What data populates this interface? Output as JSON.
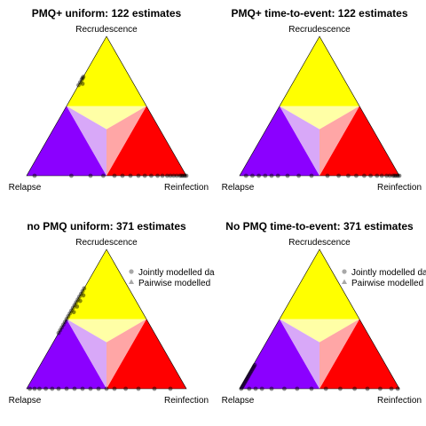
{
  "colors": {
    "recrudescence": "#ffff00",
    "relapse": "#8b00ff",
    "reinfection": "#ff0000",
    "centre_recrudescence": "#ffffa6",
    "centre_relapse": "#d8a8f8",
    "centre_reinfection": "#ffa6a6",
    "points": "#000000"
  },
  "vertex_labels": {
    "top": "Recrudescence",
    "left": "Relapse",
    "right": "Reinfection"
  },
  "legend": {
    "jointly": "Jointly modelled da",
    "pairwise": "Pairwise modelled"
  },
  "chart_data": [
    {
      "type": "scatter",
      "title": "PMQ+ uniform: 122 estimates",
      "coordinates": "ternary (relapse, recrudescence, reinfection)",
      "points": [
        {
          "relapse": 0.35,
          "recrudescence": 0.65,
          "reinfection": 0.0
        },
        {
          "relapse": 0.33,
          "recrudescence": 0.67,
          "reinfection": 0.0
        },
        {
          "relapse": 0.31,
          "recrudescence": 0.69,
          "reinfection": 0.0
        },
        {
          "relapse": 0.3,
          "recrudescence": 0.7,
          "reinfection": 0.0
        },
        {
          "relapse": 0.32,
          "recrudescence": 0.66,
          "reinfection": 0.02
        },
        {
          "relapse": 0.29,
          "recrudescence": 0.71,
          "reinfection": 0.0
        },
        {
          "relapse": 0.95,
          "recrudescence": 0.0,
          "reinfection": 0.05
        },
        {
          "relapse": 0.72,
          "recrudescence": 0.0,
          "reinfection": 0.28
        },
        {
          "relapse": 0.6,
          "recrudescence": 0.0,
          "reinfection": 0.4
        },
        {
          "relapse": 0.52,
          "recrudescence": 0.0,
          "reinfection": 0.48
        },
        {
          "relapse": 0.45,
          "recrudescence": 0.0,
          "reinfection": 0.55
        },
        {
          "relapse": 0.4,
          "recrudescence": 0.0,
          "reinfection": 0.6
        },
        {
          "relapse": 0.35,
          "recrudescence": 0.0,
          "reinfection": 0.65
        },
        {
          "relapse": 0.3,
          "recrudescence": 0.0,
          "reinfection": 0.7
        },
        {
          "relapse": 0.26,
          "recrudescence": 0.0,
          "reinfection": 0.74
        },
        {
          "relapse": 0.22,
          "recrudescence": 0.0,
          "reinfection": 0.78
        },
        {
          "relapse": 0.18,
          "recrudescence": 0.0,
          "reinfection": 0.82
        },
        {
          "relapse": 0.15,
          "recrudescence": 0.0,
          "reinfection": 0.85
        },
        {
          "relapse": 0.12,
          "recrudescence": 0.0,
          "reinfection": 0.88
        },
        {
          "relapse": 0.1,
          "recrudescence": 0.0,
          "reinfection": 0.9
        },
        {
          "relapse": 0.08,
          "recrudescence": 0.0,
          "reinfection": 0.92
        },
        {
          "relapse": 0.06,
          "recrudescence": 0.0,
          "reinfection": 0.94
        },
        {
          "relapse": 0.04,
          "recrudescence": 0.0,
          "reinfection": 0.96
        },
        {
          "relapse": 0.03,
          "recrudescence": 0.0,
          "reinfection": 0.97
        },
        {
          "relapse": 0.02,
          "recrudescence": 0.0,
          "reinfection": 0.98
        },
        {
          "relapse": 0.01,
          "recrudescence": 0.0,
          "reinfection": 0.99
        },
        {
          "relapse": 0.0,
          "recrudescence": 0.0,
          "reinfection": 1.0
        }
      ],
      "legend": false
    },
    {
      "type": "scatter",
      "title": "PMQ+ time-to-event: 122 estimates",
      "coordinates": "ternary (relapse, recrudescence, reinfection)",
      "points": [
        {
          "relapse": 0.96,
          "recrudescence": 0.0,
          "reinfection": 0.04
        },
        {
          "relapse": 0.92,
          "recrudescence": 0.0,
          "reinfection": 0.08
        },
        {
          "relapse": 0.88,
          "recrudescence": 0.0,
          "reinfection": 0.12
        },
        {
          "relapse": 0.84,
          "recrudescence": 0.0,
          "reinfection": 0.16
        },
        {
          "relapse": 0.8,
          "recrudescence": 0.0,
          "reinfection": 0.2
        },
        {
          "relapse": 0.76,
          "recrudescence": 0.0,
          "reinfection": 0.24
        },
        {
          "relapse": 0.7,
          "recrudescence": 0.0,
          "reinfection": 0.3
        },
        {
          "relapse": 0.63,
          "recrudescence": 0.0,
          "reinfection": 0.37
        },
        {
          "relapse": 0.55,
          "recrudescence": 0.0,
          "reinfection": 0.45
        },
        {
          "relapse": 0.45,
          "recrudescence": 0.0,
          "reinfection": 0.55
        },
        {
          "relapse": 0.38,
          "recrudescence": 0.0,
          "reinfection": 0.62
        },
        {
          "relapse": 0.32,
          "recrudescence": 0.0,
          "reinfection": 0.68
        },
        {
          "relapse": 0.27,
          "recrudescence": 0.0,
          "reinfection": 0.73
        },
        {
          "relapse": 0.22,
          "recrudescence": 0.0,
          "reinfection": 0.78
        },
        {
          "relapse": 0.18,
          "recrudescence": 0.0,
          "reinfection": 0.82
        },
        {
          "relapse": 0.14,
          "recrudescence": 0.0,
          "reinfection": 0.86
        },
        {
          "relapse": 0.11,
          "recrudescence": 0.0,
          "reinfection": 0.89
        },
        {
          "relapse": 0.08,
          "recrudescence": 0.0,
          "reinfection": 0.92
        },
        {
          "relapse": 0.06,
          "recrudescence": 0.0,
          "reinfection": 0.94
        },
        {
          "relapse": 0.04,
          "recrudescence": 0.0,
          "reinfection": 0.96
        },
        {
          "relapse": 0.03,
          "recrudescence": 0.0,
          "reinfection": 0.97
        },
        {
          "relapse": 0.02,
          "recrudescence": 0.0,
          "reinfection": 0.98
        },
        {
          "relapse": 0.01,
          "recrudescence": 0.0,
          "reinfection": 0.99
        },
        {
          "relapse": 0.0,
          "recrudescence": 0.0,
          "reinfection": 1.0
        }
      ],
      "legend": false
    },
    {
      "type": "scatter",
      "title": "no PMQ uniform: 371 estimates",
      "coordinates": "ternary (relapse, recrudescence, reinfection)",
      "points": [
        {
          "relapse": 0.28,
          "recrudescence": 0.72,
          "reinfection": 0.0
        },
        {
          "relapse": 0.3,
          "recrudescence": 0.7,
          "reinfection": 0.0
        },
        {
          "relapse": 0.32,
          "recrudescence": 0.68,
          "reinfection": 0.0
        },
        {
          "relapse": 0.34,
          "recrudescence": 0.66,
          "reinfection": 0.0
        },
        {
          "relapse": 0.36,
          "recrudescence": 0.64,
          "reinfection": 0.0
        },
        {
          "relapse": 0.38,
          "recrudescence": 0.62,
          "reinfection": 0.0
        },
        {
          "relapse": 0.4,
          "recrudescence": 0.6,
          "reinfection": 0.0
        },
        {
          "relapse": 0.42,
          "recrudescence": 0.58,
          "reinfection": 0.0
        },
        {
          "relapse": 0.44,
          "recrudescence": 0.56,
          "reinfection": 0.0
        },
        {
          "relapse": 0.46,
          "recrudescence": 0.54,
          "reinfection": 0.0
        },
        {
          "relapse": 0.48,
          "recrudescence": 0.52,
          "reinfection": 0.0
        },
        {
          "relapse": 0.5,
          "recrudescence": 0.5,
          "reinfection": 0.0
        },
        {
          "relapse": 0.52,
          "recrudescence": 0.48,
          "reinfection": 0.0
        },
        {
          "relapse": 0.54,
          "recrudescence": 0.46,
          "reinfection": 0.0
        },
        {
          "relapse": 0.56,
          "recrudescence": 0.44,
          "reinfection": 0.0
        },
        {
          "relapse": 0.58,
          "recrudescence": 0.42,
          "reinfection": 0.0
        },
        {
          "relapse": 0.6,
          "recrudescence": 0.4,
          "reinfection": 0.0
        },
        {
          "relapse": 0.31,
          "recrudescence": 0.67,
          "reinfection": 0.02
        },
        {
          "relapse": 0.35,
          "recrudescence": 0.63,
          "reinfection": 0.02
        },
        {
          "relapse": 0.39,
          "recrudescence": 0.59,
          "reinfection": 0.02
        },
        {
          "relapse": 0.43,
          "recrudescence": 0.55,
          "reinfection": 0.02
        },
        {
          "relapse": 0.98,
          "recrudescence": 0.0,
          "reinfection": 0.02
        },
        {
          "relapse": 0.95,
          "recrudescence": 0.0,
          "reinfection": 0.05
        },
        {
          "relapse": 0.92,
          "recrudescence": 0.0,
          "reinfection": 0.08
        },
        {
          "relapse": 0.88,
          "recrudescence": 0.0,
          "reinfection": 0.12
        },
        {
          "relapse": 0.84,
          "recrudescence": 0.0,
          "reinfection": 0.16
        },
        {
          "relapse": 0.8,
          "recrudescence": 0.0,
          "reinfection": 0.2
        },
        {
          "relapse": 0.75,
          "recrudescence": 0.0,
          "reinfection": 0.25
        },
        {
          "relapse": 0.7,
          "recrudescence": 0.0,
          "reinfection": 0.3
        },
        {
          "relapse": 0.65,
          "recrudescence": 0.0,
          "reinfection": 0.35
        },
        {
          "relapse": 0.6,
          "recrudescence": 0.0,
          "reinfection": 0.4
        },
        {
          "relapse": 0.55,
          "recrudescence": 0.0,
          "reinfection": 0.45
        },
        {
          "relapse": 0.5,
          "recrudescence": 0.0,
          "reinfection": 0.5
        },
        {
          "relapse": 0.45,
          "recrudescence": 0.0,
          "reinfection": 0.55
        },
        {
          "relapse": 0.38,
          "recrudescence": 0.0,
          "reinfection": 0.62
        },
        {
          "relapse": 0.3,
          "recrudescence": 0.0,
          "reinfection": 0.7
        },
        {
          "relapse": 0.2,
          "recrudescence": 0.0,
          "reinfection": 0.8
        },
        {
          "relapse": 0.1,
          "recrudescence": 0.0,
          "reinfection": 0.9
        }
      ],
      "legend": true
    },
    {
      "type": "scatter",
      "title": "No PMQ time-to-event: 371 estimates",
      "coordinates": "ternary (relapse, recrudescence, reinfection)",
      "points": [
        {
          "relapse": 0.99,
          "recrudescence": 0.0,
          "reinfection": 0.01
        },
        {
          "relapse": 0.98,
          "recrudescence": 0.01,
          "reinfection": 0.01
        },
        {
          "relapse": 0.97,
          "recrudescence": 0.02,
          "reinfection": 0.01
        },
        {
          "relapse": 0.96,
          "recrudescence": 0.03,
          "reinfection": 0.01
        },
        {
          "relapse": 0.95,
          "recrudescence": 0.04,
          "reinfection": 0.01
        },
        {
          "relapse": 0.94,
          "recrudescence": 0.05,
          "reinfection": 0.01
        },
        {
          "relapse": 0.93,
          "recrudescence": 0.06,
          "reinfection": 0.01
        },
        {
          "relapse": 0.92,
          "recrudescence": 0.07,
          "reinfection": 0.01
        },
        {
          "relapse": 0.91,
          "recrudescence": 0.08,
          "reinfection": 0.01
        },
        {
          "relapse": 0.9,
          "recrudescence": 0.09,
          "reinfection": 0.01
        },
        {
          "relapse": 0.89,
          "recrudescence": 0.1,
          "reinfection": 0.01
        },
        {
          "relapse": 0.88,
          "recrudescence": 0.11,
          "reinfection": 0.01
        },
        {
          "relapse": 0.87,
          "recrudescence": 0.12,
          "reinfection": 0.01
        },
        {
          "relapse": 0.86,
          "recrudescence": 0.13,
          "reinfection": 0.01
        },
        {
          "relapse": 0.85,
          "recrudescence": 0.14,
          "reinfection": 0.01
        },
        {
          "relapse": 0.84,
          "recrudescence": 0.15,
          "reinfection": 0.01
        },
        {
          "relapse": 0.83,
          "recrudescence": 0.16,
          "reinfection": 0.01
        },
        {
          "relapse": 0.82,
          "recrudescence": 0.17,
          "reinfection": 0.01
        },
        {
          "relapse": 0.94,
          "recrudescence": 0.0,
          "reinfection": 0.06
        },
        {
          "relapse": 0.9,
          "recrudescence": 0.0,
          "reinfection": 0.1
        },
        {
          "relapse": 0.86,
          "recrudescence": 0.0,
          "reinfection": 0.14
        },
        {
          "relapse": 0.8,
          "recrudescence": 0.0,
          "reinfection": 0.2
        },
        {
          "relapse": 0.72,
          "recrudescence": 0.0,
          "reinfection": 0.28
        },
        {
          "relapse": 0.64,
          "recrudescence": 0.0,
          "reinfection": 0.36
        },
        {
          "relapse": 0.55,
          "recrudescence": 0.0,
          "reinfection": 0.45
        },
        {
          "relapse": 0.46,
          "recrudescence": 0.0,
          "reinfection": 0.54
        },
        {
          "relapse": 0.37,
          "recrudescence": 0.0,
          "reinfection": 0.63
        },
        {
          "relapse": 0.28,
          "recrudescence": 0.0,
          "reinfection": 0.72
        },
        {
          "relapse": 0.2,
          "recrudescence": 0.0,
          "reinfection": 0.8
        },
        {
          "relapse": 0.12,
          "recrudescence": 0.0,
          "reinfection": 0.88
        },
        {
          "relapse": 0.05,
          "recrudescence": 0.0,
          "reinfection": 0.95
        },
        {
          "relapse": 0.01,
          "recrudescence": 0.0,
          "reinfection": 0.99
        }
      ],
      "legend": true
    }
  ]
}
